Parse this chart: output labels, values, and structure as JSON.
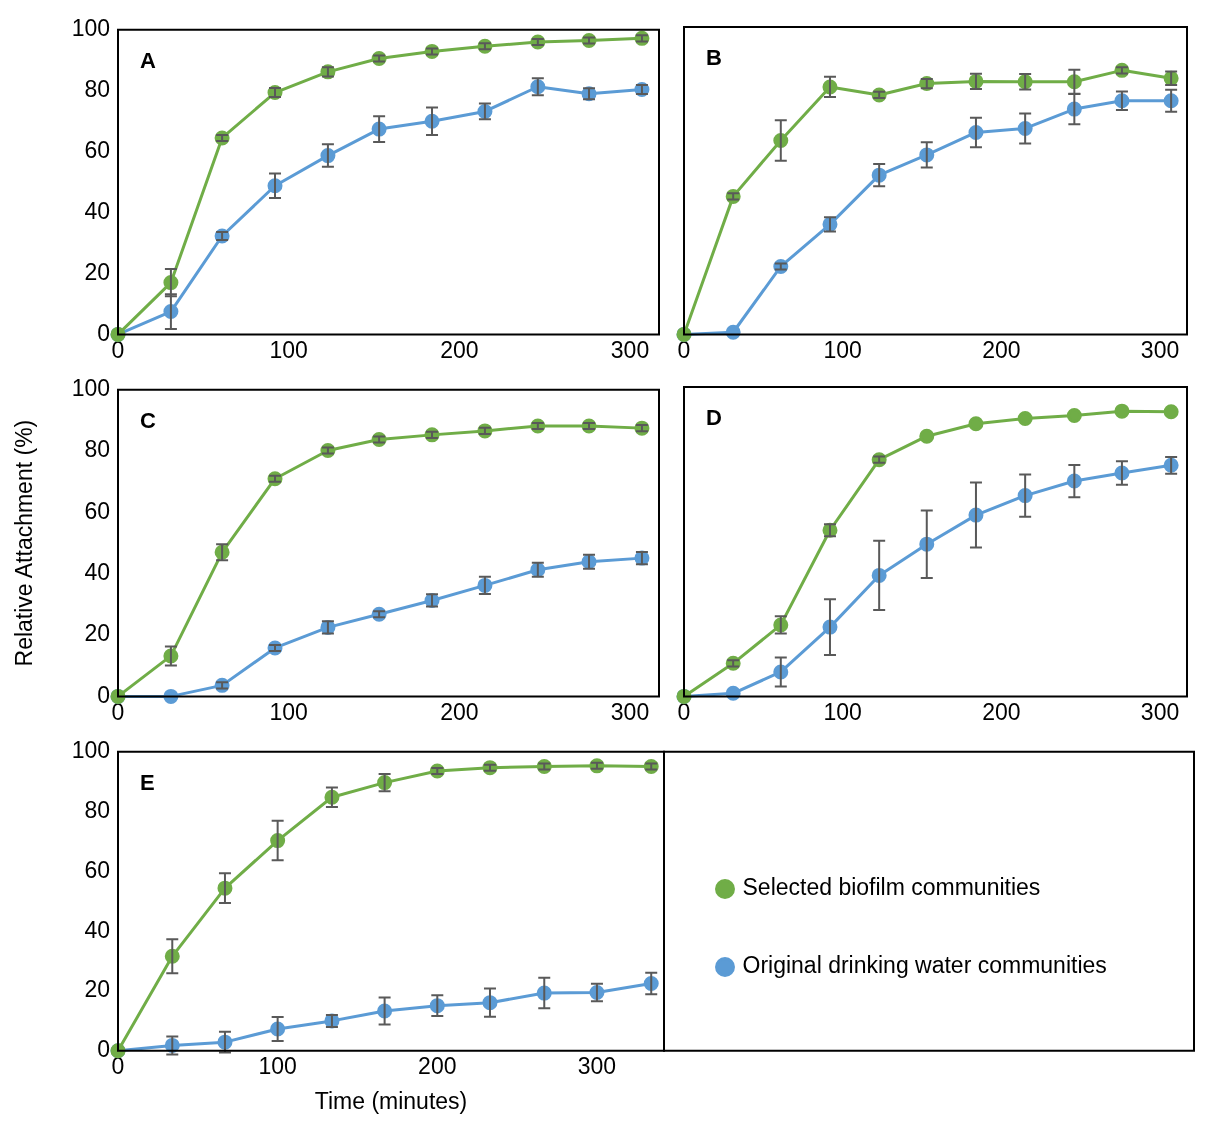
{
  "chart_data": [
    {
      "type": "line",
      "title": "A",
      "x": [
        0,
        31,
        61,
        92,
        123,
        153,
        184,
        215,
        246,
        276,
        307
      ],
      "xlim": [
        0,
        317
      ],
      "xticks": [
        0,
        100,
        200,
        300
      ],
      "ylim": [
        0,
        100
      ],
      "yticks": [
        0,
        20,
        40,
        60,
        80,
        100
      ],
      "marker": "circle",
      "line_style": "solid",
      "series": [
        {
          "color": "#70ad47",
          "values": [
            0,
            17,
            64.5,
            79.4,
            86.2,
            90.6,
            92.9,
            94.6,
            96,
            96.5,
            97.2
          ],
          "errors": [
            null,
            4.5,
            1,
            1.5,
            1.5,
            1,
            1,
            1,
            1,
            1,
            1
          ]
        },
        {
          "color": "#5b9bd5",
          "values": [
            0,
            7.5,
            32.3,
            48.8,
            58.7,
            67.4,
            70,
            73.2,
            81.3,
            79,
            80.4
          ],
          "errors": [
            null,
            5.7,
            1.3,
            4,
            3.7,
            4.2,
            4.5,
            2.6,
            2.8,
            1.8,
            1.5
          ]
        }
      ]
    },
    {
      "type": "line",
      "title": "B",
      "x": [
        0,
        31,
        61,
        92,
        123,
        153,
        184,
        215,
        246,
        276,
        307
      ],
      "xlim": [
        0,
        317
      ],
      "xticks": [
        0,
        100,
        200,
        300
      ],
      "ylim": [
        0,
        100
      ],
      "yticks": [
        0,
        20,
        40,
        60,
        80,
        100
      ],
      "tick_labels": "x",
      "marker": "circle",
      "line_style": "solid",
      "series": [
        {
          "color": "#70ad47",
          "values": [
            0,
            44.9,
            63.1,
            80.5,
            77.9,
            81.6,
            82.3,
            82.2,
            82.2,
            85.9,
            83.3
          ],
          "errors": [
            null,
            1,
            6.6,
            3.3,
            1,
            1.5,
            2.5,
            2.5,
            3.9,
            1,
            2.2
          ]
        },
        {
          "color": "#5b9bd5",
          "values": [
            0,
            0.7,
            22.1,
            35.8,
            51.8,
            58.4,
            65.7,
            67,
            73.3,
            76,
            76
          ],
          "errors": [
            null,
            null,
            1,
            2.3,
            3.6,
            4.1,
            4.8,
            4.9,
            4.9,
            3,
            3.6
          ]
        }
      ]
    },
    {
      "type": "line",
      "title": "C",
      "ylabel": "Relative Attachment (%)",
      "x": [
        0,
        31,
        61,
        92,
        123,
        153,
        184,
        215,
        246,
        276,
        307
      ],
      "xlim": [
        0,
        317
      ],
      "xticks": [
        0,
        100,
        200,
        300
      ],
      "ylim": [
        0,
        100
      ],
      "yticks": [
        0,
        20,
        40,
        60,
        80,
        100
      ],
      "marker": "circle",
      "line_style": "solid",
      "series": [
        {
          "color": "#70ad47",
          "values": [
            0,
            13.2,
            47,
            71,
            80.2,
            83.8,
            85.3,
            86.6,
            88.2,
            88.2,
            87.5
          ],
          "errors": [
            null,
            3.1,
            2.6,
            1,
            1,
            1,
            1,
            1,
            1,
            1,
            1
          ]
        },
        {
          "color": "#5b9bd5",
          "values": [
            0,
            0,
            3.6,
            15.8,
            22.5,
            26.8,
            31.3,
            36.2,
            41.3,
            43.9,
            45.1
          ],
          "errors": [
            null,
            null,
            1,
            1,
            2,
            1,
            2,
            2.8,
            2.3,
            2.3,
            2
          ]
        }
      ]
    },
    {
      "type": "line",
      "title": "D",
      "x": [
        0,
        31,
        61,
        92,
        123,
        153,
        184,
        215,
        246,
        276,
        307
      ],
      "xlim": [
        0,
        317
      ],
      "xticks": [
        0,
        100,
        200,
        300
      ],
      "ylim": [
        0,
        100
      ],
      "yticks": [
        0,
        20,
        40,
        60,
        80,
        100
      ],
      "tick_labels": "x",
      "marker": "circle",
      "line_style": "solid",
      "series": [
        {
          "color": "#70ad47",
          "values": [
            0,
            10.7,
            23.1,
            53.7,
            76.5,
            84.1,
            88.1,
            89.8,
            90.8,
            92.2,
            92
          ],
          "errors": [
            null,
            1,
            2.8,
            1.9,
            1,
            null,
            null,
            null,
            null,
            null,
            null
          ]
        },
        {
          "color": "#5b9bd5",
          "values": [
            0,
            1,
            7.9,
            22.4,
            39.1,
            49.2,
            58.6,
            64.9,
            69.6,
            72.2,
            74.7
          ],
          "errors": [
            null,
            null,
            4.7,
            9,
            11.2,
            10.9,
            10.5,
            6.8,
            5.2,
            3.8,
            2.7
          ]
        }
      ]
    },
    {
      "type": "line",
      "title": "E",
      "xlabel": "Time (minutes)",
      "x": [
        0,
        34,
        67,
        100,
        134,
        167,
        200,
        233,
        267,
        300,
        334
      ],
      "xlim": [
        0,
        342
      ],
      "xticks": [
        0,
        100,
        200,
        300
      ],
      "ylim": [
        0,
        100
      ],
      "yticks": [
        0,
        20,
        40,
        60,
        80,
        100
      ],
      "marker": "circle",
      "line_style": "solid",
      "legend": "right",
      "series": [
        {
          "name": "Selected biofilm communities",
          "color": "#70ad47",
          "values": [
            0,
            31.6,
            54.4,
            70.3,
            84.8,
            89.7,
            93.6,
            94.7,
            95.1,
            95.3,
            95.1
          ],
          "errors": [
            null,
            5.7,
            5,
            6.6,
            3.3,
            2.9,
            1,
            1,
            1,
            1,
            1
          ]
        },
        {
          "name": "Original drinking water communities",
          "color": "#5b9bd5",
          "values": [
            0,
            1.8,
            2.9,
            7.3,
            10,
            13.3,
            15.1,
            16.1,
            19.3,
            19.5,
            22.5
          ],
          "errors": [
            null,
            3,
            3.5,
            4,
            2,
            4.5,
            3.5,
            4.7,
            5.1,
            2.9,
            3.6
          ]
        }
      ]
    }
  ]
}
